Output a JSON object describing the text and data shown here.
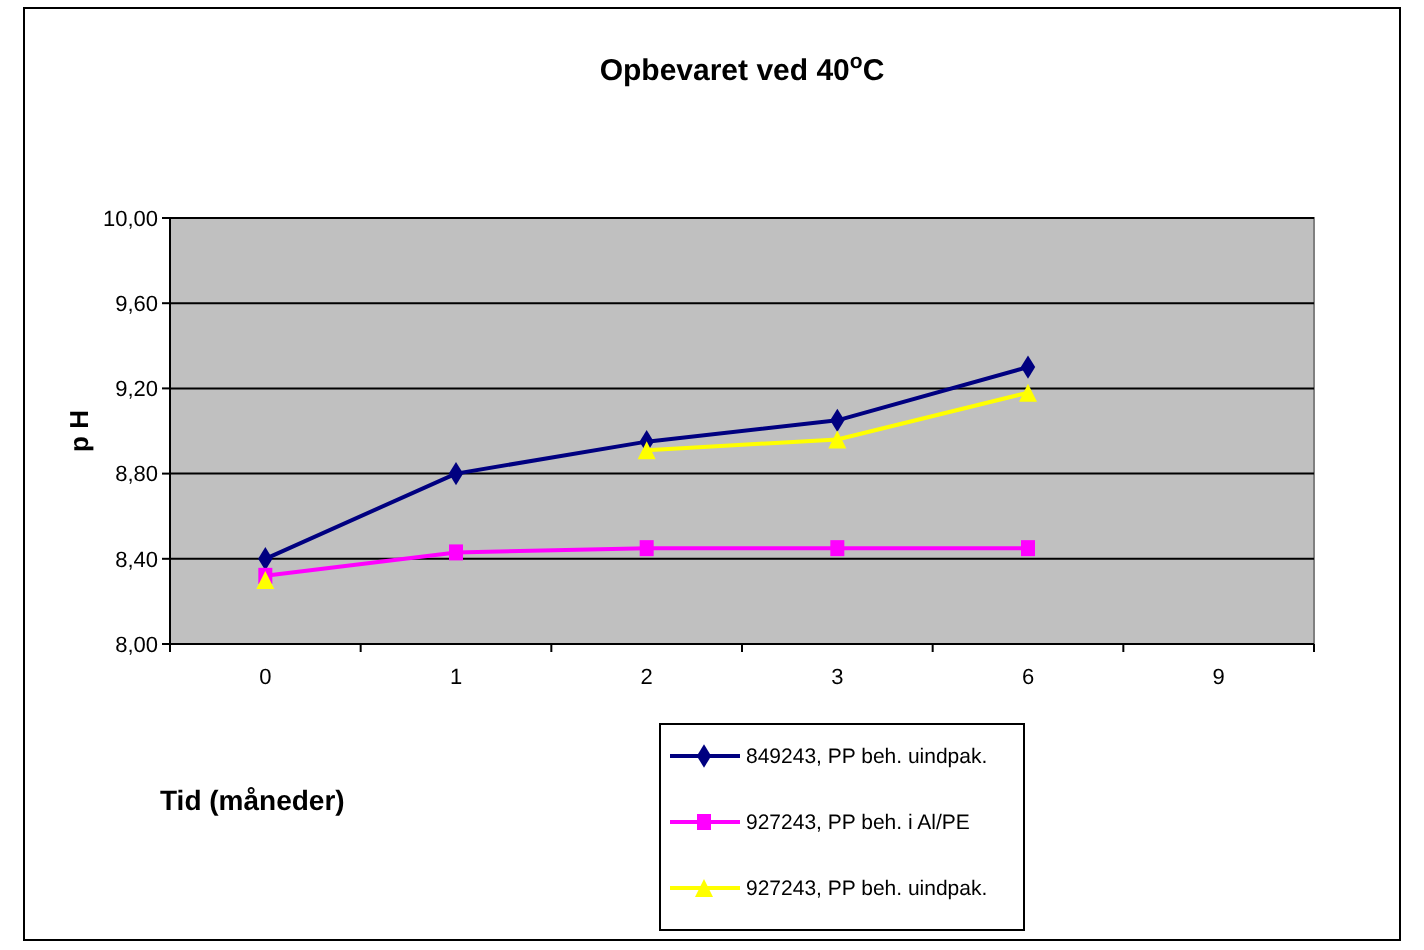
{
  "chart_data": {
    "type": "line",
    "title": "Opbevaret ved 40$^{o}$C",
    "xlabel": "Tid (måneder)",
    "ylabel": "p H",
    "categories": [
      "0",
      "1",
      "2",
      "3",
      "6",
      "9"
    ],
    "ylim": [
      8,
      10
    ],
    "yticks": [
      {
        "value": 8,
        "label": "8,00"
      },
      {
        "value": 8.4,
        "label": "8,40"
      },
      {
        "value": 8.8,
        "label": "8,80"
      },
      {
        "value": 9.2,
        "label": "9,20"
      },
      {
        "value": 9.6,
        "label": "9,60"
      },
      {
        "value": 10,
        "label": "10,00"
      }
    ],
    "grid": "y",
    "legend": "bottom",
    "series": [
      {
        "name": "849243, PP beh. uindpak.",
        "color": "#000080",
        "marker": "diamond",
        "values": [
          8.4,
          8.8,
          8.95,
          9.05,
          9.3,
          null
        ]
      },
      {
        "name": "927243, PP beh. i Al/PE",
        "color": "#ff00ff",
        "marker": "square",
        "values": [
          8.32,
          8.43,
          8.45,
          8.45,
          8.45,
          null
        ]
      },
      {
        "name": "927243, PP beh. uindpak.",
        "color": "#ffff00",
        "marker": "triangle",
        "values": [
          8.3,
          null,
          8.91,
          8.96,
          9.18,
          null
        ]
      }
    ]
  }
}
